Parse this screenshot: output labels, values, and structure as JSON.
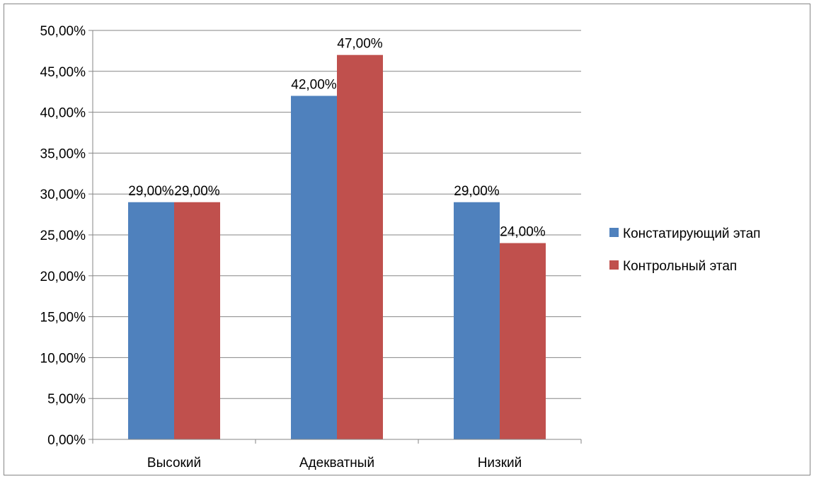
{
  "chart_data": {
    "type": "bar",
    "title": "",
    "xlabel": "",
    "ylabel": "",
    "categories": [
      "Высокий",
      "Адекватный",
      "Низкий"
    ],
    "series": [
      {
        "name": "Констатирующий этап",
        "values": [
          29,
          42,
          29
        ],
        "color": "#4F81BD"
      },
      {
        "name": "Контрольный этап",
        "values": [
          29,
          47,
          24
        ],
        "color": "#C0504D"
      }
    ],
    "data_labels": [
      [
        "29,00%",
        "42,00%",
        "29,00%"
      ],
      [
        "29,00%",
        "47,00%",
        "24,00%"
      ]
    ],
    "y_ticks": [
      "0,00%",
      "5,00%",
      "10,00%",
      "15,00%",
      "20,00%",
      "25,00%",
      "30,00%",
      "35,00%",
      "40,00%",
      "45,00%",
      "50,00%"
    ],
    "ylim": [
      0,
      50
    ],
    "y_step": 5,
    "grid": true,
    "legend_position": "right",
    "colors": {
      "gridline": "#868686",
      "axis": "#868686",
      "frame": "#868686"
    }
  }
}
